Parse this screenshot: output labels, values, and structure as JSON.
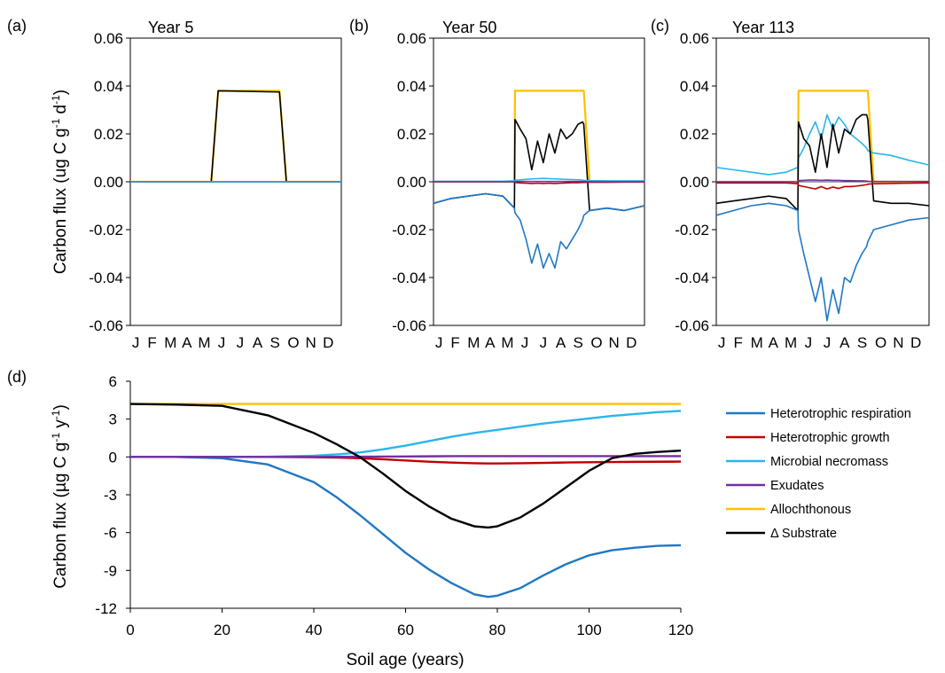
{
  "colors": {
    "heterotrophic_respiration": "#1f77c4",
    "heterotrophic_growth": "#c00000",
    "microbial_necromass": "#29b6ea",
    "exudates": "#7030a0",
    "allochthonous": "#ffc000",
    "delta_substrate": "#000000"
  },
  "top_panels": {
    "ylabel_main": "Carbon flux (ug C g",
    "ylabel_sup1": "-1",
    "ylabel_mid": " d",
    "ylabel_sup2": "-1",
    "ylabel_end": ")"
  },
  "bottom_panel": {
    "xlabel": "Soil age (years)",
    "ylabel_main": "Carbon flux (µg C g",
    "ylabel_sup1": "-1",
    "ylabel_mid": " y",
    "ylabel_sup2": "-1",
    "ylabel_end": ")"
  },
  "chart_data": [
    {
      "panel": "(a)",
      "type": "line",
      "title": "Year 5",
      "ylim": [
        -0.06,
        0.06
      ],
      "yticks": [
        "0.06",
        "0.04",
        "0.02",
        "0.00",
        "-0.02",
        "-0.04",
        "-0.06"
      ],
      "xticks": [
        "J",
        "F",
        "M",
        "A",
        "M",
        "J",
        "J",
        "A",
        "S",
        "O",
        "N",
        "D"
      ],
      "x": [
        0,
        140,
        152,
        258,
        270,
        365
      ],
      "series": [
        {
          "key": "allochthonous",
          "values": [
            0,
            0,
            0.038,
            0.038,
            0,
            0
          ]
        },
        {
          "key": "delta_substrate",
          "values": [
            0,
            0,
            0.038,
            0.0375,
            0,
            0
          ]
        },
        {
          "key": "exudates",
          "values": [
            0,
            0,
            0,
            0,
            0,
            0
          ]
        },
        {
          "key": "heterotrophic_respiration",
          "values": [
            0,
            0,
            0,
            0,
            0,
            0
          ]
        },
        {
          "key": "heterotrophic_growth",
          "values": [
            0,
            0,
            0,
            0,
            0,
            0
          ]
        },
        {
          "key": "microbial_necromass",
          "values": [
            0,
            0,
            0,
            0,
            0,
            0
          ]
        }
      ]
    },
    {
      "panel": "(b)",
      "type": "line",
      "title": "Year 50",
      "ylim": [
        -0.06,
        0.06
      ],
      "yticks": [
        "0.06",
        "0.04",
        "0.02",
        "0.00",
        "-0.02",
        "-0.04",
        "-0.06"
      ],
      "xticks": [
        "J",
        "F",
        "M",
        "A",
        "M",
        "J",
        "J",
        "A",
        "S",
        "O",
        "N",
        "D"
      ],
      "x": [
        0,
        30,
        60,
        90,
        120,
        140,
        141,
        150,
        160,
        170,
        180,
        190,
        200,
        210,
        220,
        230,
        240,
        250,
        258,
        260,
        270,
        300,
        330,
        365
      ],
      "series": [
        {
          "key": "allochthonous",
          "values": [
            0,
            0,
            0,
            0,
            0,
            0,
            0.038,
            0.038,
            0.038,
            0.038,
            0.038,
            0.038,
            0.038,
            0.038,
            0.038,
            0.038,
            0.038,
            0.038,
            0.038,
            0.038,
            0,
            0,
            0,
            0
          ]
        },
        {
          "key": "delta_substrate",
          "values": [
            -0.009,
            -0.007,
            -0.006,
            -0.005,
            -0.006,
            -0.011,
            0.026,
            0.022,
            0.018,
            0.005,
            0.017,
            0.008,
            0.02,
            0.012,
            0.022,
            0.018,
            0.02,
            0.024,
            0.025,
            0.024,
            -0.012,
            -0.011,
            -0.012,
            -0.01
          ]
        },
        {
          "key": "heterotrophic_respiration",
          "values": [
            -0.009,
            -0.007,
            -0.006,
            -0.005,
            -0.006,
            -0.011,
            -0.013,
            -0.016,
            -0.024,
            -0.034,
            -0.026,
            -0.036,
            -0.03,
            -0.036,
            -0.025,
            -0.028,
            -0.024,
            -0.02,
            -0.016,
            -0.014,
            -0.012,
            -0.011,
            -0.012,
            -0.01
          ]
        },
        {
          "key": "heterotrophic_growth",
          "values": [
            0,
            0,
            0,
            0,
            0,
            0,
            -0.0003,
            -0.0005,
            -0.0006,
            -0.0007,
            -0.0006,
            -0.0007,
            -0.0006,
            -0.0007,
            -0.0006,
            -0.0005,
            -0.0004,
            -0.0004,
            -0.0003,
            -0.0003,
            -0.0002,
            -0.0002,
            -0.0001,
            -0.0001
          ]
        },
        {
          "key": "microbial_necromass",
          "values": [
            0.0002,
            0.0002,
            0.0002,
            0.0002,
            0.0002,
            0.0004,
            0.0006,
            0.0008,
            0.001,
            0.0012,
            0.0013,
            0.0014,
            0.0013,
            0.0012,
            0.0011,
            0.001,
            0.0009,
            0.0008,
            0.0007,
            0.0006,
            0.0005,
            0.0004,
            0.0004,
            0.0004
          ]
        },
        {
          "key": "exudates",
          "values": [
            0,
            0,
            0,
            0,
            0,
            0,
            0.0001,
            0.0001,
            0.0001,
            0.0001,
            0.0001,
            0.0001,
            0.0001,
            0.0001,
            0.0001,
            0.0001,
            0.0001,
            0.0001,
            0.0001,
            0.0001,
            0,
            0,
            0,
            0
          ]
        }
      ]
    },
    {
      "panel": "(c)",
      "type": "line",
      "title": "Year 113",
      "ylim": [
        -0.06,
        0.06
      ],
      "yticks": [
        "0.06",
        "0.04",
        "0.02",
        "0.00",
        "-0.02",
        "-0.04",
        "-0.06"
      ],
      "xticks": [
        "J",
        "F",
        "M",
        "A",
        "M",
        "J",
        "J",
        "A",
        "S",
        "O",
        "N",
        "D"
      ],
      "x": [
        0,
        30,
        60,
        90,
        120,
        140,
        141,
        150,
        160,
        170,
        180,
        190,
        200,
        210,
        220,
        230,
        240,
        250,
        258,
        260,
        270,
        300,
        330,
        365
      ],
      "series": [
        {
          "key": "allochthonous",
          "values": [
            0,
            0,
            0,
            0,
            0,
            0,
            0.038,
            0.038,
            0.038,
            0.038,
            0.038,
            0.038,
            0.038,
            0.038,
            0.038,
            0.038,
            0.038,
            0.038,
            0.038,
            0.038,
            0,
            0,
            0,
            0
          ]
        },
        {
          "key": "microbial_necromass",
          "values": [
            0.006,
            0.005,
            0.004,
            0.003,
            0.004,
            0.006,
            0.01,
            0.014,
            0.02,
            0.025,
            0.018,
            0.028,
            0.022,
            0.027,
            0.024,
            0.02,
            0.018,
            0.016,
            0.014,
            0.013,
            0.012,
            0.011,
            0.009,
            0.007
          ]
        },
        {
          "key": "delta_substrate",
          "values": [
            -0.009,
            -0.008,
            -0.007,
            -0.006,
            -0.007,
            -0.012,
            0.025,
            0.018,
            0.015,
            0.004,
            0.02,
            0.006,
            0.024,
            0.012,
            0.022,
            0.02,
            0.026,
            0.028,
            0.028,
            0.026,
            -0.008,
            -0.009,
            -0.009,
            -0.01
          ]
        },
        {
          "key": "heterotrophic_respiration",
          "values": [
            -0.014,
            -0.012,
            -0.01,
            -0.009,
            -0.01,
            -0.012,
            -0.02,
            -0.03,
            -0.04,
            -0.05,
            -0.04,
            -0.058,
            -0.045,
            -0.055,
            -0.04,
            -0.042,
            -0.035,
            -0.03,
            -0.027,
            -0.025,
            -0.02,
            -0.018,
            -0.016,
            -0.015
          ]
        },
        {
          "key": "heterotrophic_growth",
          "values": [
            -0.0005,
            -0.0005,
            -0.0005,
            -0.0005,
            -0.0005,
            -0.0008,
            -0.0015,
            -0.002,
            -0.0025,
            -0.003,
            -0.002,
            -0.003,
            -0.0022,
            -0.0028,
            -0.002,
            -0.002,
            -0.0018,
            -0.0015,
            -0.0012,
            -0.001,
            -0.0008,
            -0.0007,
            -0.0006,
            -0.0005
          ]
        },
        {
          "key": "exudates",
          "values": [
            0,
            0,
            0,
            0,
            0,
            0,
            0.0005,
            0.0006,
            0.0007,
            0.0007,
            0.0006,
            0.0007,
            0.0006,
            0.0006,
            0.0005,
            0.0005,
            0.0004,
            0.0004,
            0.0003,
            0.0002,
            0.0001,
            0.0001,
            0.0001,
            0.0001
          ]
        }
      ]
    },
    {
      "panel": "(d)",
      "type": "line",
      "xlabel": "Soil age (years)",
      "xlim": [
        0,
        120
      ],
      "ylim": [
        -12,
        6
      ],
      "xticks": [
        "0",
        "20",
        "40",
        "60",
        "80",
        "100",
        "120"
      ],
      "yticks": [
        "6",
        "3",
        "0",
        "-3",
        "-6",
        "-9",
        "-12"
      ],
      "legend_position": "right",
      "x": [
        0,
        10,
        20,
        30,
        40,
        45,
        50,
        55,
        60,
        65,
        70,
        75,
        78,
        80,
        85,
        90,
        95,
        100,
        105,
        110,
        115,
        120
      ],
      "series": [
        {
          "key": "heterotrophic_respiration",
          "name": "Heterotrophic respiration",
          "values": [
            0,
            0,
            -0.1,
            -0.6,
            -2.0,
            -3.2,
            -4.6,
            -6.1,
            -7.6,
            -8.9,
            -10.0,
            -10.9,
            -11.1,
            -11.0,
            -10.4,
            -9.4,
            -8.5,
            -7.8,
            -7.4,
            -7.2,
            -7.05,
            -7.0
          ]
        },
        {
          "key": "heterotrophic_growth",
          "name": "Heterotrophic growth",
          "values": [
            0,
            0,
            0,
            0,
            -0.02,
            -0.05,
            -0.1,
            -0.18,
            -0.28,
            -0.38,
            -0.45,
            -0.5,
            -0.52,
            -0.52,
            -0.5,
            -0.47,
            -0.44,
            -0.42,
            -0.4,
            -0.39,
            -0.38,
            -0.37
          ]
        },
        {
          "key": "microbial_necromass",
          "name": "Microbial necromass",
          "values": [
            0,
            0,
            0,
            0.02,
            0.1,
            0.2,
            0.35,
            0.6,
            0.9,
            1.25,
            1.6,
            1.9,
            2.05,
            2.15,
            2.4,
            2.65,
            2.85,
            3.05,
            3.25,
            3.4,
            3.55,
            3.65
          ]
        },
        {
          "key": "exudates",
          "name": "Exudates",
          "values": [
            0,
            0,
            0,
            0,
            0,
            0.01,
            0.02,
            0.03,
            0.04,
            0.05,
            0.06,
            0.06,
            0.06,
            0.06,
            0.06,
            0.06,
            0.06,
            0.06,
            0.06,
            0.06,
            0.06,
            0.06
          ]
        },
        {
          "key": "allochthonous",
          "name": "Allochthonous",
          "values": [
            4.2,
            4.2,
            4.2,
            4.2,
            4.2,
            4.2,
            4.2,
            4.2,
            4.2,
            4.2,
            4.2,
            4.2,
            4.2,
            4.2,
            4.2,
            4.2,
            4.2,
            4.2,
            4.2,
            4.2,
            4.2,
            4.2
          ]
        },
        {
          "key": "delta_substrate",
          "name": "Δ Substrate",
          "values": [
            4.2,
            4.15,
            4.05,
            3.3,
            1.9,
            1.0,
            0.0,
            -1.3,
            -2.7,
            -3.9,
            -4.9,
            -5.5,
            -5.6,
            -5.5,
            -4.8,
            -3.7,
            -2.4,
            -1.1,
            -0.1,
            0.25,
            0.4,
            0.5
          ]
        }
      ]
    }
  ]
}
